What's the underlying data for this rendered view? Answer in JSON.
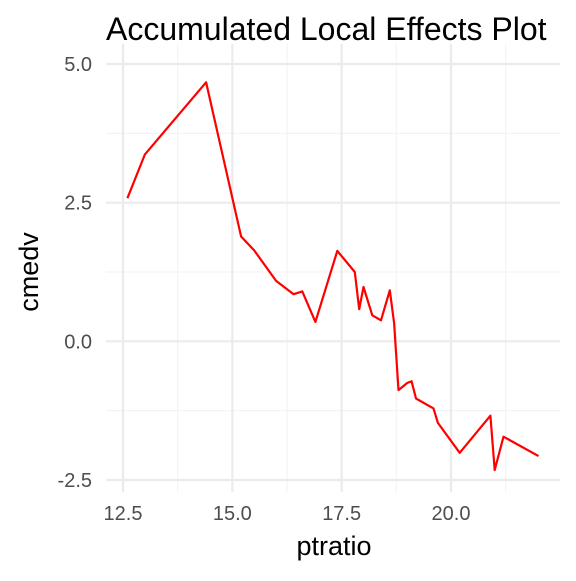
{
  "chart_data": {
    "type": "line",
    "title": "Accumulated Local Effects Plot",
    "xlabel": "ptratio",
    "ylabel": "cmedv",
    "xlim": [
      12.4,
      22.2
    ],
    "ylim": [
      -2.5,
      5.0
    ],
    "x_ticks": [
      12.5,
      15.0,
      17.5,
      20.0
    ],
    "x_tick_labels": [
      "12.5",
      "15.0",
      "17.5",
      "20.0"
    ],
    "y_ticks": [
      -2.5,
      0.0,
      2.5,
      5.0
    ],
    "y_tick_labels": [
      "-2.5",
      "0.0",
      "2.5",
      "5.0"
    ],
    "grid": true,
    "line_color": "#ff0000",
    "series": [
      {
        "x": [
          12.6,
          13.0,
          14.4,
          15.2,
          15.5,
          16.0,
          16.4,
          16.6,
          16.9,
          17.4,
          17.8,
          17.9,
          18.0,
          18.2,
          18.4,
          18.6,
          18.7,
          18.8,
          19.0,
          19.1,
          19.2,
          19.6,
          19.7,
          20.2,
          20.9,
          21.0,
          21.2,
          22.0
        ],
        "y": [
          2.58,
          3.37,
          4.67,
          1.89,
          1.64,
          1.09,
          0.85,
          0.9,
          0.35,
          1.63,
          1.25,
          0.58,
          0.98,
          0.47,
          0.38,
          0.92,
          0.33,
          -0.88,
          -0.75,
          -0.72,
          -1.03,
          -1.21,
          -1.47,
          -2.01,
          -1.34,
          -2.32,
          -1.72,
          -2.07
        ]
      }
    ]
  }
}
